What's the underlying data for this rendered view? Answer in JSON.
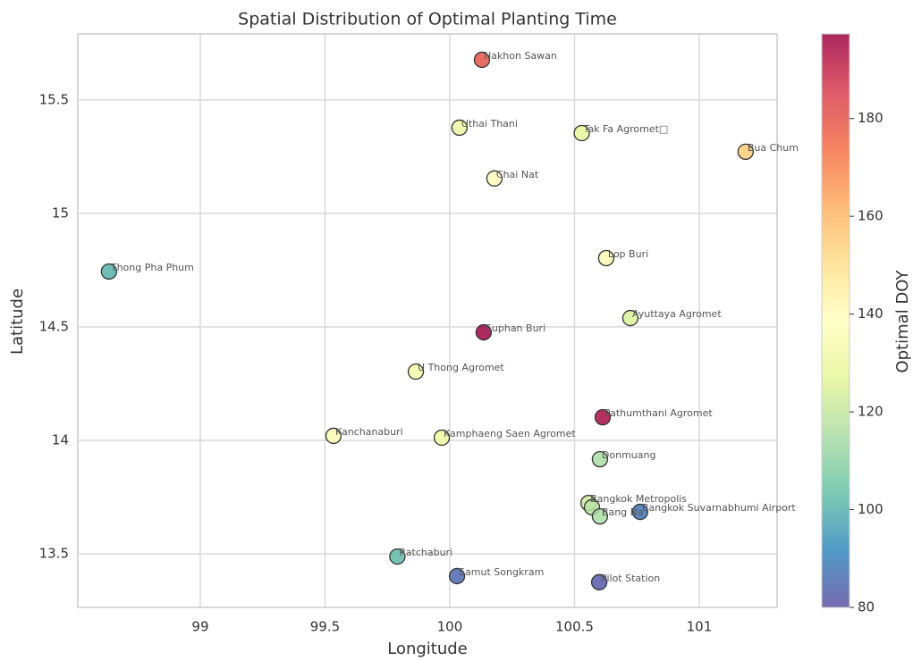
{
  "chart_data": {
    "type": "scatter",
    "title": "Spatial Distribution of Optimal Planting Time",
    "x_label": "Longitude",
    "y_label": "Latitude",
    "colorbar_label": "Optimal DOY",
    "labels": [
      "Nakhon Sawan",
      "Uthai Thani",
      "Tak Fa Agromet□",
      "Bua Chum",
      "Chai Nat",
      "Thong Pha Phum",
      "Lop Buri",
      "Ayuttaya Agromet",
      "Suphan Buri",
      "U Thong Agromet",
      "Pathumthani Agromet",
      "Kanchanaburi",
      "Kamphaeng Saen Agromet",
      "Donmuang",
      "Bangkok Metropolis",
      null,
      "Bang Na",
      "Bangkok Suvarnabhumi Airport",
      "Ratchaburi",
      "Samut Songkram",
      "Pilot Station"
    ],
    "x": [
      100.129,
      100.039,
      100.529,
      101.186,
      100.179,
      98.634,
      100.627,
      100.724,
      100.136,
      99.864,
      100.613,
      99.534,
      99.968,
      100.602,
      100.556,
      100.57,
      100.602,
      100.763,
      99.79,
      100.029,
      100.599
    ],
    "y": [
      15.677,
      15.378,
      15.354,
      15.272,
      15.154,
      14.744,
      14.803,
      14.539,
      14.476,
      14.303,
      14.102,
      14.02,
      14.012,
      13.917,
      13.724,
      13.705,
      13.665,
      13.685,
      13.488,
      13.402,
      13.375
    ],
    "values": [
      180,
      130,
      128,
      155,
      138,
      100,
      135,
      125,
      197,
      132,
      195,
      135,
      130,
      115,
      122,
      118,
      115,
      88,
      102,
      85,
      82
    ],
    "xlim": [
      98.509,
      101.312
    ],
    "xticks": [
      99.0,
      99.5,
      100.0,
      100.5,
      101.0
    ],
    "ylim": [
      13.264,
      15.791
    ],
    "yticks": [
      13.5,
      14.0,
      14.5,
      15.0,
      15.5
    ],
    "clim": [
      80,
      197.3
    ],
    "cticks": [
      80,
      100,
      120,
      140,
      160,
      180
    ],
    "colormap": [
      "#5e4fa2",
      "#3288bd",
      "#66c2a5",
      "#abdda4",
      "#e6f598",
      "#ffffbf",
      "#fee08b",
      "#fdae61",
      "#f46d43",
      "#d53e4f",
      "#9e0142"
    ],
    "grid": true
  }
}
